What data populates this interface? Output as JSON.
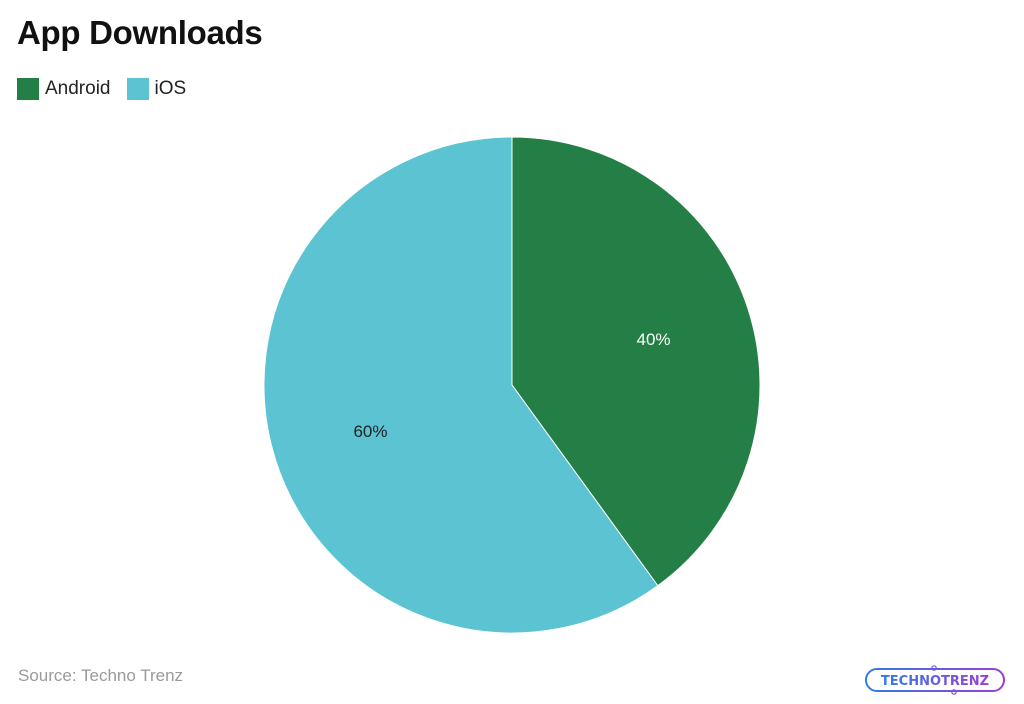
{
  "chart_data": {
    "type": "pie",
    "title": "App Downloads",
    "categories": [
      "Android",
      "iOS"
    ],
    "values": [
      40,
      60
    ],
    "labels": [
      "40%",
      "60%"
    ],
    "colors": [
      "#237f46",
      "#5bc3d2"
    ],
    "legend_position": "top-left",
    "start_angle_deg": 0,
    "direction": "clockwise"
  },
  "header": {
    "title": "App Downloads"
  },
  "legend": {
    "items": [
      {
        "label": "Android",
        "color": "#237f46"
      },
      {
        "label": "iOS",
        "color": "#5bc3d2"
      }
    ]
  },
  "footer": {
    "source": "Source: Techno Trenz",
    "logo_text": "TECHNOTRENZ"
  }
}
